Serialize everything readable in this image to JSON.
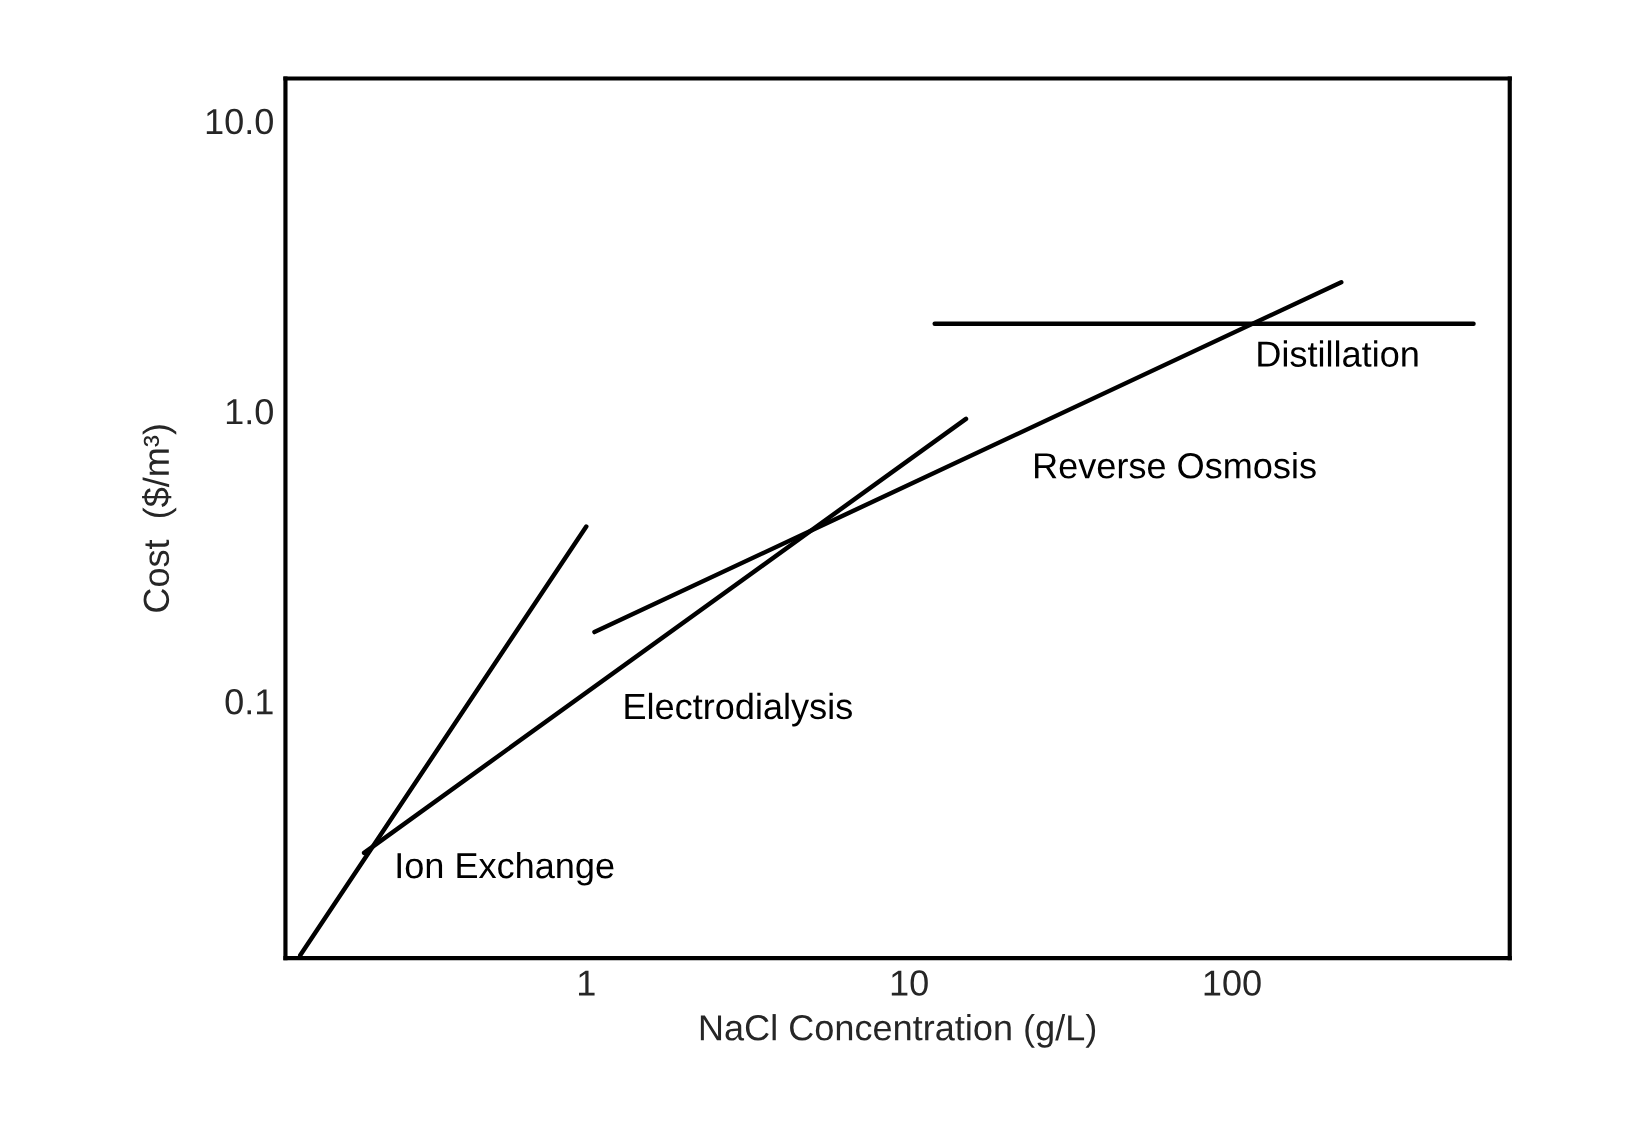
{
  "chart_data": {
    "type": "line",
    "xlabel": "NaCl Concentration (g/L)",
    "ylabel": "Cost  ($/m³)",
    "log": "xy",
    "xlim": [
      0.117,
      725
    ],
    "ylim": [
      0.013,
      14
    ],
    "xticks": [
      1,
      10,
      100
    ],
    "yticks": [
      {
        "value": 10,
        "label": "10.0"
      },
      {
        "value": 1,
        "label": "1.0"
      },
      {
        "value": 0.1,
        "label": "0.1"
      }
    ],
    "grid": false,
    "legend": false,
    "series": [
      {
        "name": "Ion Exchange",
        "color": "#000000",
        "x": [
          0.13,
          1
        ],
        "values": [
          0.0133,
          0.4
        ]
      },
      {
        "name": "Electrodialysis",
        "color": "#000000",
        "x": [
          0.205,
          15
        ],
        "values": [
          0.03,
          0.94
        ]
      },
      {
        "name": "Reverse Osmosis",
        "color": "#000000",
        "x": [
          1.06,
          218
        ],
        "values": [
          0.173,
          2.78
        ]
      },
      {
        "name": "Distillation",
        "color": "#000000",
        "x": [
          12,
          560
        ],
        "values": [
          2.0,
          2.0
        ]
      }
    ]
  }
}
